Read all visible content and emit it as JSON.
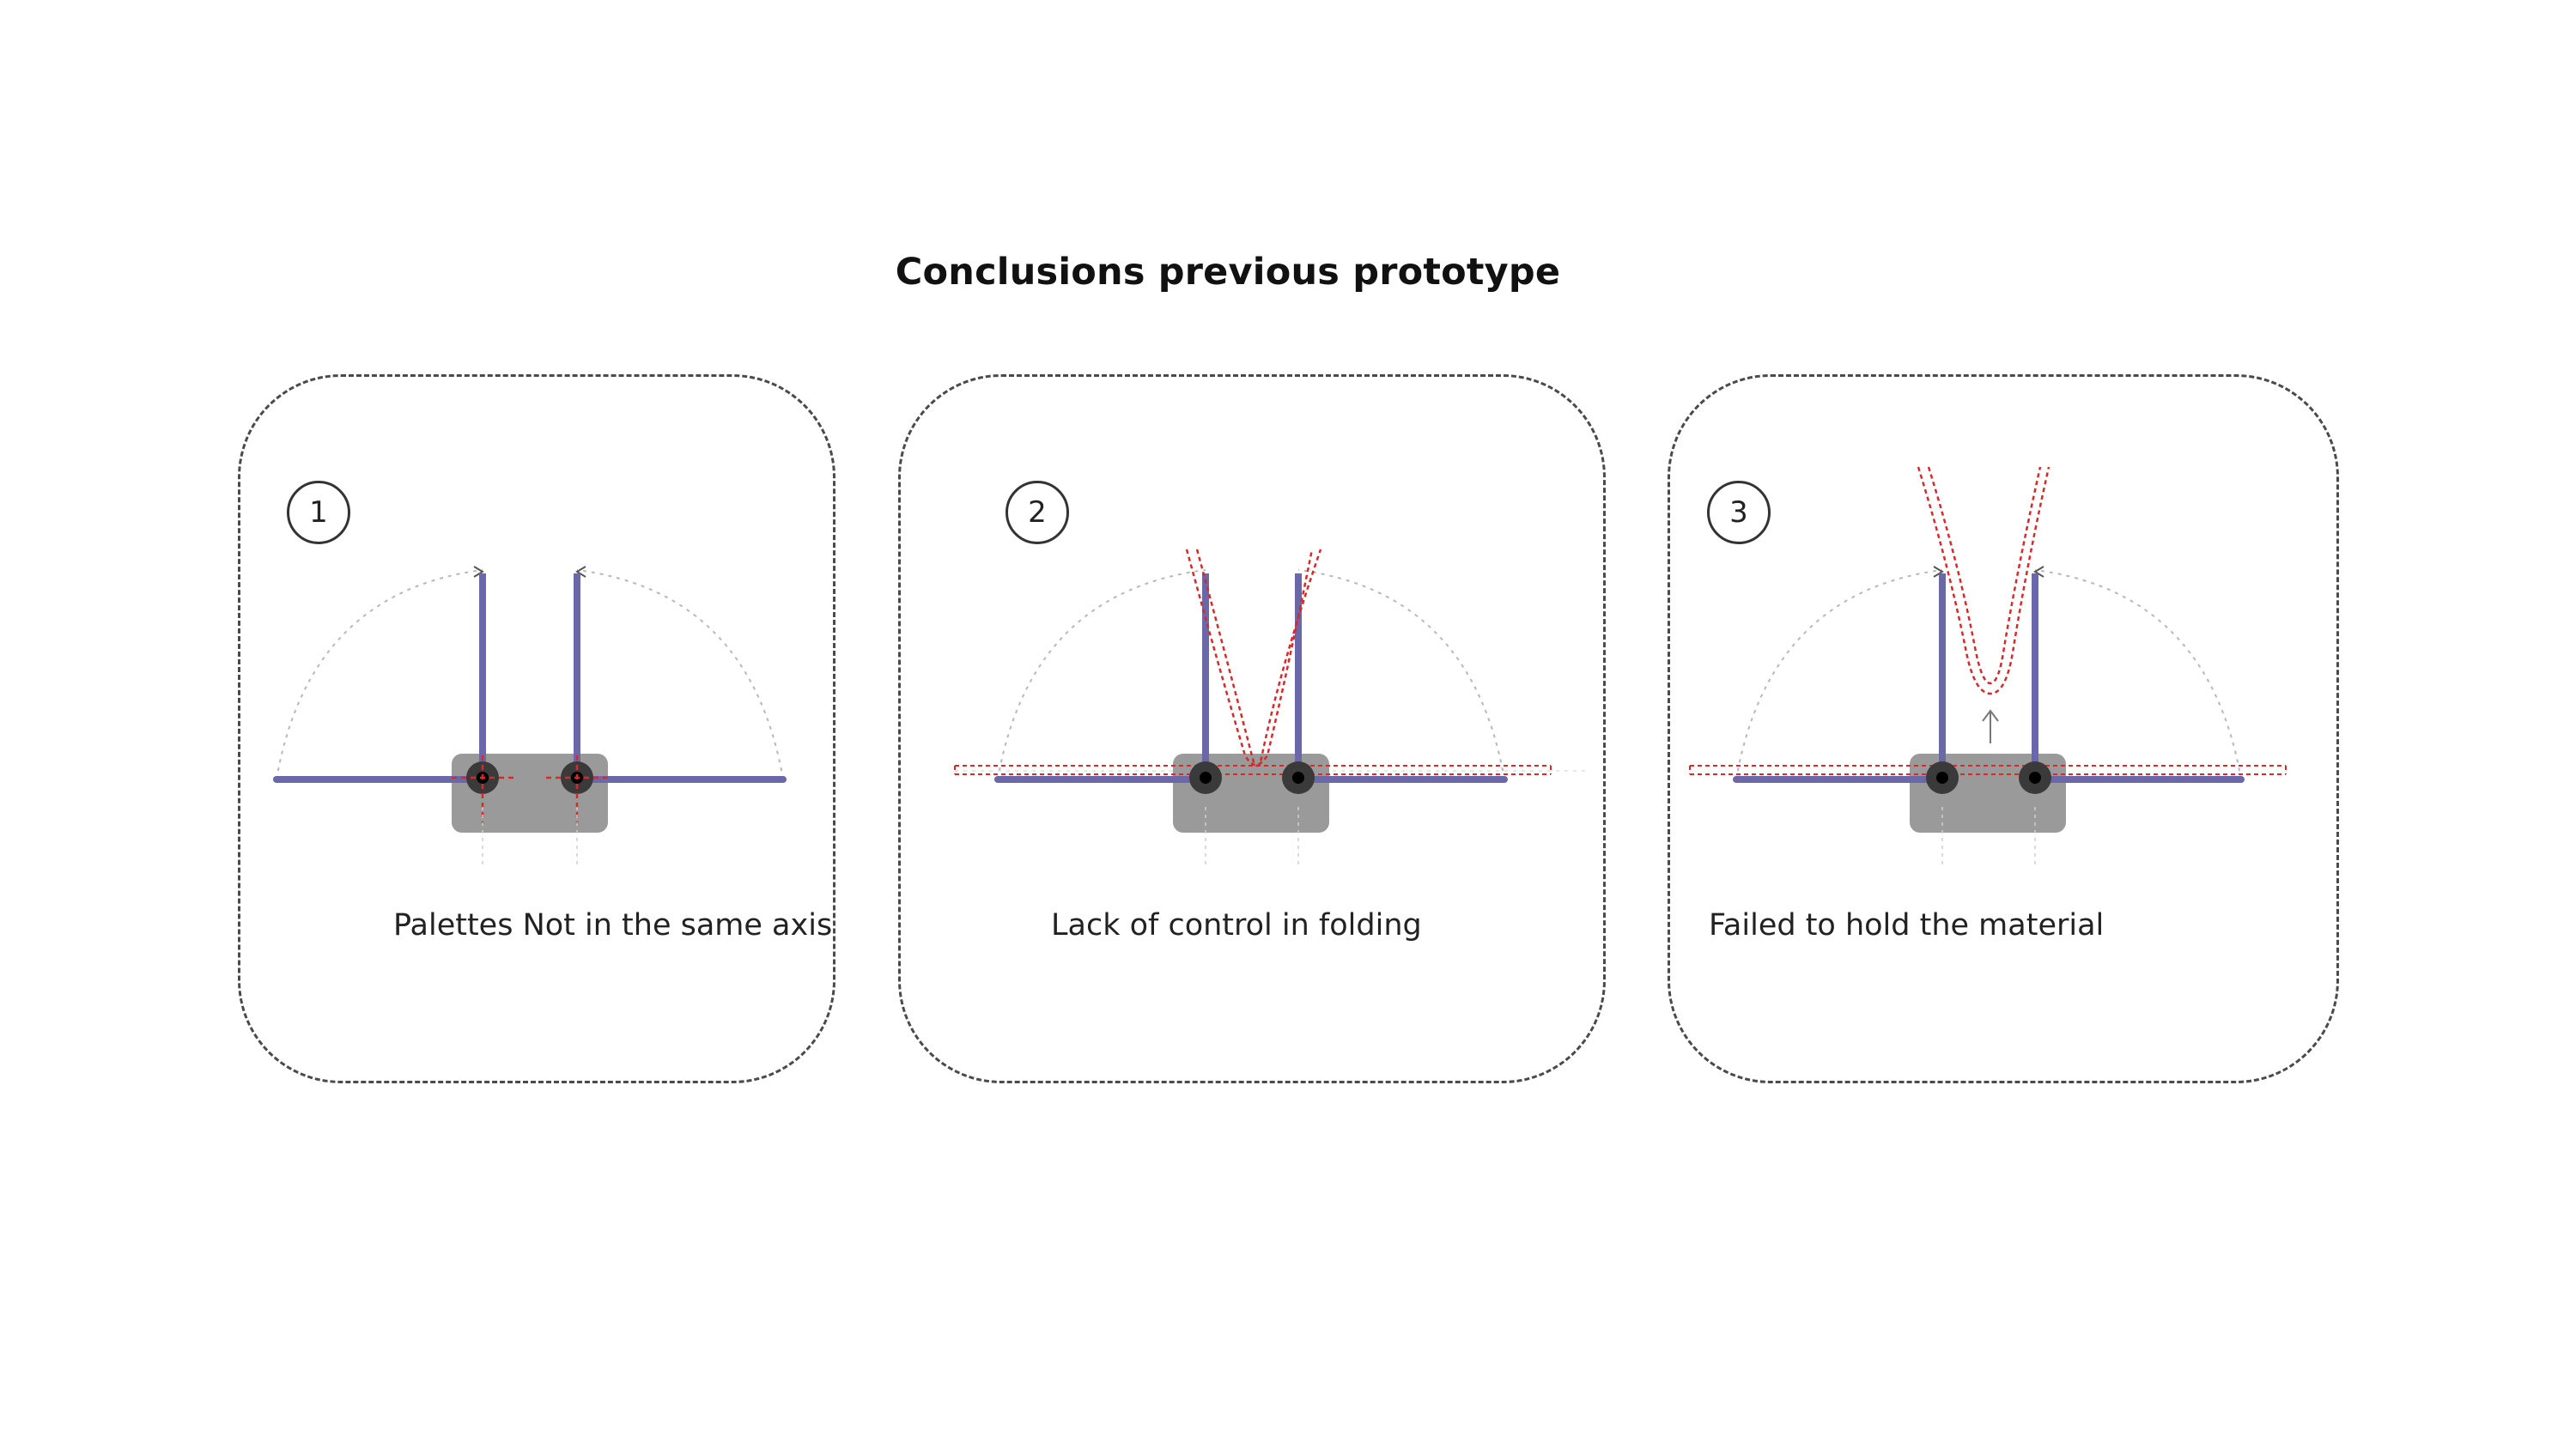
{
  "title": "Conclusions previous prototype",
  "panels": [
    {
      "number": "1",
      "caption": "Palettes Not in the same axis"
    },
    {
      "number": "2",
      "caption": "Lack of control in folding"
    },
    {
      "number": "3",
      "caption": "Failed to hold the material"
    }
  ],
  "colors": {
    "palette": "#6a68a8",
    "material": "#d42a2a",
    "base": "#9a9a9a",
    "hinge": "#3a3a3a",
    "border": "#4a4a4a"
  },
  "icons": {
    "step_marker": "numbered-circle-icon",
    "arrow": "up-arrow-icon"
  }
}
